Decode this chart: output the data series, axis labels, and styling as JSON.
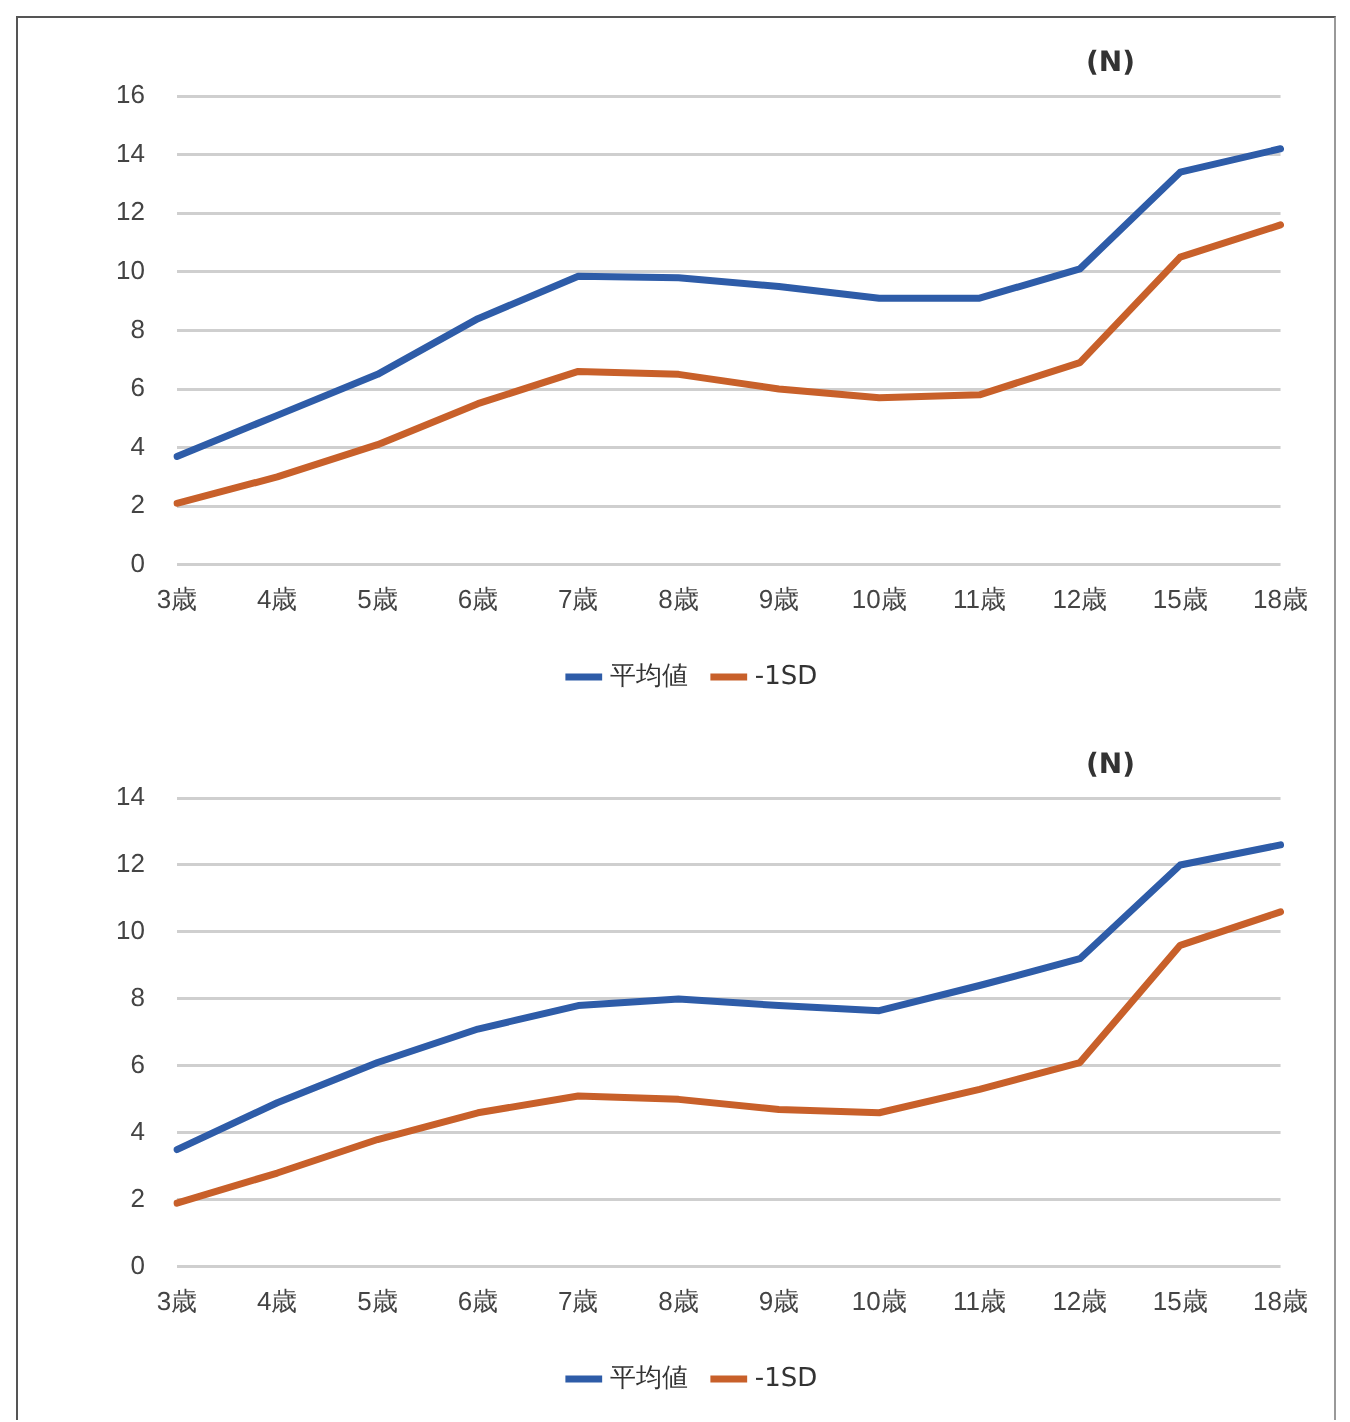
{
  "chart_data": [
    {
      "type": "line",
      "ylabel": "(N)",
      "categories": [
        "3歳",
        "4歳",
        "5歳",
        "6歳",
        "7歳",
        "8歳",
        "9歳",
        "10歳",
        "11歳",
        "12歳",
        "15歳",
        "18歳"
      ],
      "series": [
        {
          "name": "平均値",
          "color": "#2e5ca8",
          "values": [
            3.7,
            5.1,
            6.5,
            8.4,
            9.85,
            9.8,
            9.5,
            9.1,
            9.1,
            10.1,
            13.4,
            14.2
          ]
        },
        {
          "name": "-1SD",
          "color": "#c8602a",
          "values": [
            2.1,
            3.0,
            4.1,
            5.5,
            6.6,
            6.5,
            6.0,
            5.7,
            5.8,
            6.9,
            10.5,
            11.6
          ]
        }
      ],
      "ylim": [
        0,
        16
      ],
      "yticks": [
        0,
        2,
        4,
        6,
        8,
        10,
        12,
        14,
        16
      ],
      "grid": "y",
      "legend": "bottom",
      "marker": "none"
    },
    {
      "type": "line",
      "ylabel": "(N)",
      "categories": [
        "3歳",
        "4歳",
        "5歳",
        "6歳",
        "7歳",
        "8歳",
        "9歳",
        "10歳",
        "11歳",
        "12歳",
        "15歳",
        "18歳"
      ],
      "series": [
        {
          "name": "平均値",
          "color": "#2e5ca8",
          "values": [
            3.5,
            4.9,
            6.1,
            7.1,
            7.8,
            8.0,
            7.8,
            7.65,
            8.4,
            9.2,
            12.0,
            12.6
          ]
        },
        {
          "name": "-1SD",
          "color": "#c8602a",
          "values": [
            1.9,
            2.8,
            3.8,
            4.6,
            5.1,
            5.0,
            4.7,
            4.6,
            5.3,
            6.1,
            9.6,
            10.6
          ]
        }
      ],
      "ylim": [
        0,
        14
      ],
      "yticks": [
        0,
        2,
        4,
        6,
        8,
        10,
        12,
        14
      ],
      "grid": "y",
      "legend": "bottom",
      "marker": "none"
    }
  ]
}
